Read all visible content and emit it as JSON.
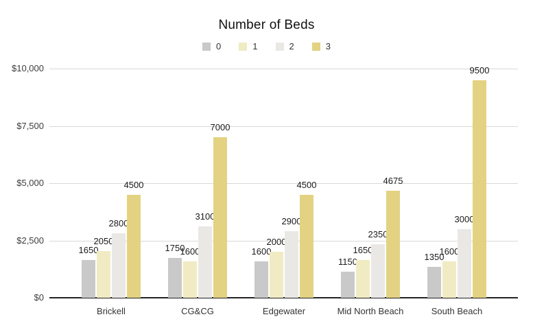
{
  "chart": {
    "title": "Number of Beds"
  },
  "chart_data": {
    "type": "bar",
    "title": "Number of Beds",
    "xlabel": "",
    "ylabel": "",
    "categories": [
      "Brickell",
      "CG&CG",
      "Edgewater",
      "Mid North Beach",
      "South Beach"
    ],
    "series": [
      {
        "name": "0",
        "color": "#c9c9c9",
        "values": [
          1650,
          1750,
          1600,
          1150,
          1350
        ]
      },
      {
        "name": "1",
        "color": "#f0ebc2",
        "values": [
          2050,
          1600,
          2000,
          1650,
          1600
        ]
      },
      {
        "name": "2",
        "color": "#eae8e5",
        "values": [
          2800,
          3100,
          2900,
          2350,
          3000
        ]
      },
      {
        "name": "3",
        "color": "#e3d282",
        "values": [
          4500,
          7000,
          4500,
          4675,
          9500
        ]
      }
    ],
    "ylim": [
      0,
      10000
    ],
    "yticks": [
      0,
      2500,
      5000,
      7500,
      10000
    ],
    "ytick_labels": [
      "$0",
      "$2,500",
      "$5,000",
      "$7,500",
      "$10,000"
    ],
    "grid": true,
    "legend_position": "top",
    "data_labels": true,
    "colors": {
      "grid": "#d9d9d9",
      "baseline": "#222222",
      "text": "#333333"
    }
  }
}
